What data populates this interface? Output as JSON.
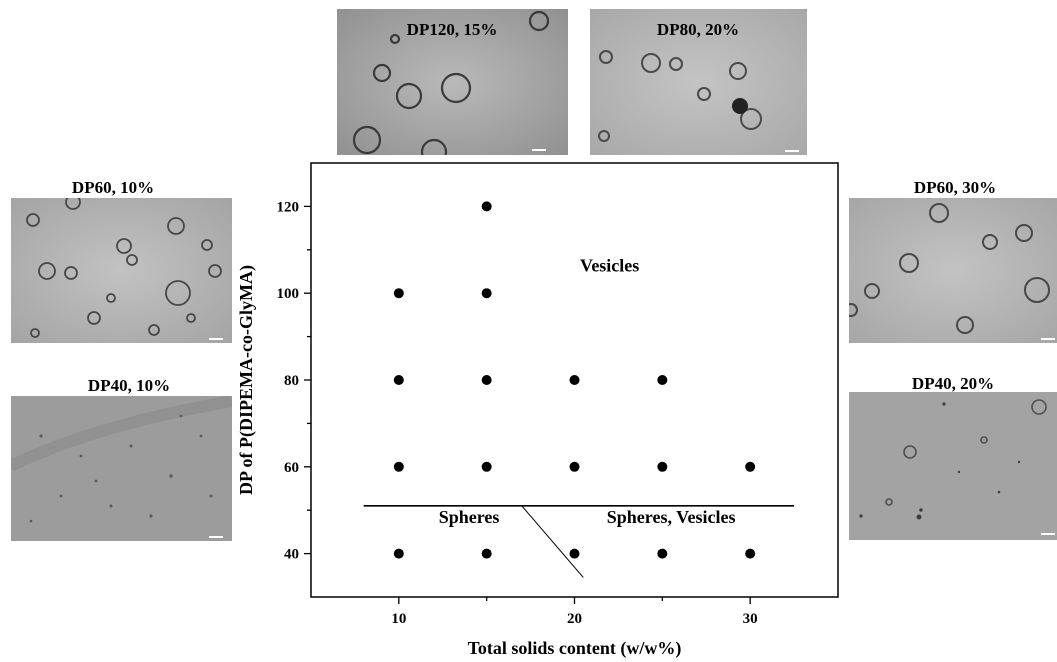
{
  "chart_data": {
    "type": "scatter",
    "title": "",
    "xlabel": "Total solids content (w/w%)",
    "ylabel": "DP of P(DIPEMA-co-GlyMA)",
    "xlim": [
      5,
      35
    ],
    "ylim": [
      30,
      130
    ],
    "x_ticks": [
      10,
      20,
      30
    ],
    "y_ticks": [
      40,
      60,
      80,
      100,
      120
    ],
    "grid": false,
    "points": [
      {
        "x": 15,
        "y": 120
      },
      {
        "x": 10,
        "y": 100
      },
      {
        "x": 15,
        "y": 100
      },
      {
        "x": 10,
        "y": 80
      },
      {
        "x": 15,
        "y": 80
      },
      {
        "x": 20,
        "y": 80
      },
      {
        "x": 25,
        "y": 80
      },
      {
        "x": 10,
        "y": 60
      },
      {
        "x": 15,
        "y": 60
      },
      {
        "x": 20,
        "y": 60
      },
      {
        "x": 25,
        "y": 60
      },
      {
        "x": 30,
        "y": 60
      },
      {
        "x": 10,
        "y": 40
      },
      {
        "x": 15,
        "y": 40
      },
      {
        "x": 20,
        "y": 40
      },
      {
        "x": 25,
        "y": 40
      },
      {
        "x": 30,
        "y": 40
      }
    ],
    "boundaries": [
      {
        "from": [
          8,
          51
        ],
        "to": [
          32.5,
          51
        ]
      },
      {
        "from": [
          17,
          51
        ],
        "to": [
          20.5,
          34.5
        ]
      }
    ],
    "region_labels": [
      {
        "text": "Vesicles",
        "x": 22,
        "y": 105
      },
      {
        "text": "Spheres",
        "x": 14,
        "y": 47
      },
      {
        "text": "Spheres, Vesicles",
        "x": 25.5,
        "y": 47
      }
    ]
  },
  "micrographs": [
    {
      "id": "dp120-15",
      "title": "DP120, 15%",
      "morphology": "vesicles"
    },
    {
      "id": "dp80-20",
      "title": "DP80, 20%",
      "morphology": "vesicles"
    },
    {
      "id": "dp60-10",
      "title": "DP60, 10%",
      "morphology": "vesicles"
    },
    {
      "id": "dp40-10",
      "title": "DP40, 10%",
      "morphology": "spheres"
    },
    {
      "id": "dp60-30",
      "title": "DP60, 30%",
      "morphology": "vesicles"
    },
    {
      "id": "dp40-20",
      "title": "DP40, 20%",
      "morphology": "spheres-vesicles"
    }
  ]
}
